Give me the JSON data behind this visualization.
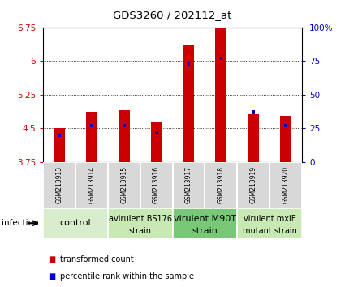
{
  "title": "GDS3260 / 202112_at",
  "samples": [
    "GSM213913",
    "GSM213914",
    "GSM213915",
    "GSM213916",
    "GSM213917",
    "GSM213918",
    "GSM213919",
    "GSM213920"
  ],
  "red_values": [
    4.5,
    4.87,
    4.9,
    4.65,
    6.35,
    6.72,
    4.82,
    4.78
  ],
  "blue_values": [
    20,
    27,
    27,
    22,
    73,
    77,
    37,
    27
  ],
  "ylim_left": [
    3.75,
    6.75
  ],
  "ylim_right": [
    0,
    100
  ],
  "yticks_left": [
    3.75,
    4.5,
    5.25,
    6.0,
    6.75
  ],
  "yticks_right": [
    0,
    25,
    50,
    75,
    100
  ],
  "ytick_labels_left": [
    "3.75",
    "4.5",
    "5.25",
    "6",
    "6.75"
  ],
  "ytick_labels_right": [
    "0",
    "25",
    "50",
    "75",
    "100%"
  ],
  "groups": [
    {
      "label": "control",
      "start": 0,
      "end": 2,
      "color": "#d8edcc",
      "fontsize": 8
    },
    {
      "label": "avirulent BS176\nstrain",
      "start": 2,
      "end": 4,
      "color": "#c8e8b4",
      "fontsize": 7
    },
    {
      "label": "virulent M90T\nstrain",
      "start": 4,
      "end": 6,
      "color": "#78c878",
      "fontsize": 8
    },
    {
      "label": "virulent mxiE\nmutant strain",
      "start": 6,
      "end": 8,
      "color": "#c8e8b4",
      "fontsize": 7
    }
  ],
  "red_color": "#cc0000",
  "blue_color": "#0000cc",
  "bar_width": 0.35,
  "tick_area_color": "#cccccc",
  "infection_label": "infection",
  "legend_red": "transformed count",
  "legend_blue": "percentile rank within the sample"
}
